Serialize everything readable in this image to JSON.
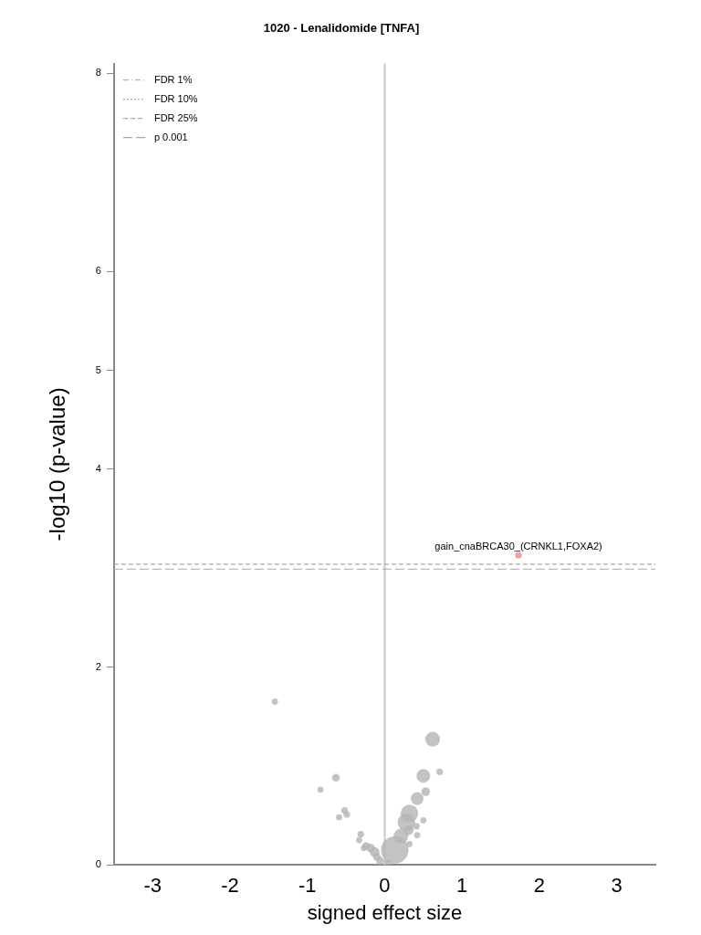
{
  "chart_data": {
    "type": "bubble",
    "title": "1020 - Lenalidomide [TNFA]",
    "xlabel": "signed effect size",
    "ylabel": "-log10 (p-value)",
    "xlim": [
      -3.5,
      3.5
    ],
    "xticks": [
      -3,
      -2,
      -1,
      0,
      1,
      2,
      3
    ],
    "ylim": [
      0,
      8.1
    ],
    "yticks": [
      0,
      2,
      4,
      5,
      6,
      8
    ],
    "grid": false,
    "legend": "top left",
    "series": [
      {
        "color": "#b4b4b4",
        "x": [
          -1.42,
          0.62,
          0.71,
          0.5,
          -0.63,
          -0.83,
          0.53,
          0.42,
          -0.52,
          -0.49,
          -0.59,
          0.32,
          0.28,
          0.5,
          0.41,
          0.31,
          0.42,
          0.21,
          0.32,
          -0.31,
          -0.33,
          -0.24,
          -0.18,
          -0.13,
          0.13,
          -0.1,
          -0.06,
          0.04,
          -0.27
        ],
        "values": [
          1.65,
          1.27,
          0.94,
          0.9,
          0.88,
          0.76,
          0.74,
          0.67,
          0.55,
          0.51,
          0.48,
          0.52,
          0.43,
          0.45,
          0.39,
          0.35,
          0.3,
          0.29,
          0.21,
          0.31,
          0.25,
          0.19,
          0.17,
          0.13,
          0.15,
          0.08,
          0.04,
          0.02,
          0.17
        ],
        "sizes": [
          0.05,
          0.29,
          0.06,
          0.25,
          0.08,
          0.05,
          0.1,
          0.22,
          0.06,
          0.06,
          0.05,
          0.41,
          0.41,
          0.05,
          0.06,
          0.13,
          0.05,
          0.29,
          0.05,
          0.06,
          0.05,
          0.08,
          0.1,
          0.13,
          1,
          0.08,
          0.08,
          0.06,
          0.05
        ]
      },
      {
        "type": "bubble",
        "color": "#f28b8b",
        "x": [
          1.73
        ],
        "values": [
          3.13
        ],
        "sizes": [
          0.06
        ]
      },
      {
        "type": "line",
        "name": "FDR 1%",
        "color": "#b0b0b0",
        "line_style": "dashdot",
        "values": [
          null,
          null
        ]
      },
      {
        "type": "line",
        "name": "FDR 10%",
        "color": "#b0b0b0",
        "line_style": "dotted",
        "values": [
          null,
          null
        ]
      },
      {
        "type": "line",
        "name": "FDR 25%",
        "color": "#a8a8a8",
        "line_style": "dashed",
        "x": [
          -3.5,
          3.5
        ],
        "values": [
          3.04,
          3.04
        ]
      },
      {
        "type": "line",
        "name": "p 0.001",
        "color": "#a8a8a8",
        "line_style": "longdash",
        "x": [
          -3.5,
          3.5
        ],
        "values": [
          2.99,
          2.99
        ]
      }
    ],
    "ref_lines": [
      {
        "axis": "x",
        "value": 0,
        "color": "#c8c8c8",
        "line_style": "solid"
      }
    ],
    "annotations": [
      {
        "text": "gain_cnaBRCA30_(CRNKL1,FOXA2)",
        "x": 1.73,
        "y": 3.13
      }
    ]
  }
}
